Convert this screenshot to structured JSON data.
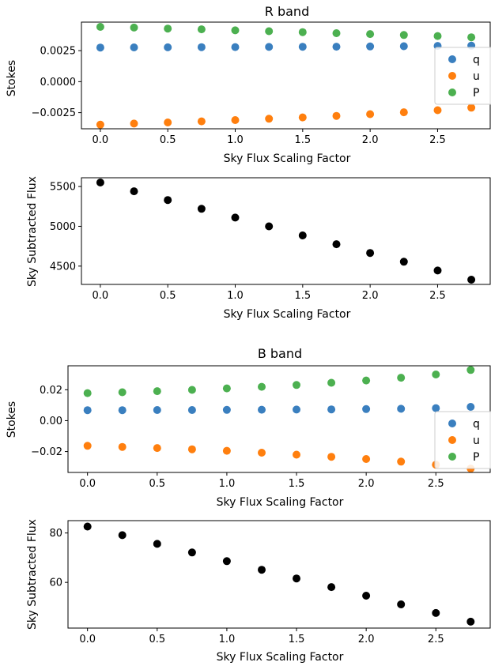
{
  "chart_data": [
    {
      "type": "scatter",
      "title": "R band",
      "xlabel": "Sky Flux Scaling Factor",
      "ylabel": "Stokes",
      "xlim": [
        -0.14,
        2.89
      ],
      "ylim": [
        -0.0038,
        0.0048
      ],
      "xticks": [
        0.0,
        0.5,
        1.0,
        1.5,
        2.0,
        2.5
      ],
      "xtick_labels": [
        "0.0",
        "0.5",
        "1.0",
        "1.5",
        "2.0",
        "2.5"
      ],
      "yticks": [
        -0.0025,
        0.0,
        0.0025
      ],
      "ytick_labels": [
        "−0.0025",
        "0.0000",
        "0.0025"
      ],
      "grid": false,
      "legend": "right",
      "x": [
        0.0,
        0.25,
        0.5,
        0.75,
        1.0,
        1.25,
        1.5,
        1.75,
        2.0,
        2.25,
        2.5,
        2.75
      ],
      "series": [
        {
          "name": "q",
          "color": "#3a7fbf",
          "values": [
            0.00275,
            0.00276,
            0.00277,
            0.00278,
            0.00279,
            0.0028,
            0.00281,
            0.00282,
            0.00284,
            0.00286,
            0.00288,
            0.0029
          ]
        },
        {
          "name": "u",
          "color": "#ff7f0e",
          "values": [
            -0.00347,
            -0.00338,
            -0.00329,
            -0.0032,
            -0.0031,
            -0.00299,
            -0.00288,
            -0.00276,
            -0.00262,
            -0.00247,
            -0.0023,
            -0.0021
          ]
        },
        {
          "name": "P",
          "color": "#4cb050",
          "values": [
            0.00442,
            0.00436,
            0.00428,
            0.00422,
            0.00414,
            0.00407,
            0.00399,
            0.00391,
            0.00384,
            0.00376,
            0.00368,
            0.00358
          ]
        }
      ]
    },
    {
      "type": "scatter",
      "title": "",
      "xlabel": "Sky Flux Scaling Factor",
      "ylabel": "Sky Subtracted Flux",
      "xlim": [
        -0.14,
        2.89
      ],
      "ylim": [
        4270,
        5610
      ],
      "xticks": [
        0.0,
        0.5,
        1.0,
        1.5,
        2.0,
        2.5
      ],
      "xtick_labels": [
        "0.0",
        "0.5",
        "1.0",
        "1.5",
        "2.0",
        "2.5"
      ],
      "yticks": [
        4500,
        5000,
        5500
      ],
      "ytick_labels": [
        "4500",
        "5000",
        "5500"
      ],
      "grid": false,
      "x": [
        0.0,
        0.25,
        0.5,
        0.75,
        1.0,
        1.25,
        1.5,
        1.75,
        2.0,
        2.25,
        2.5,
        2.75
      ],
      "series": [
        {
          "color": "#000000",
          "values": [
            5550,
            5440,
            5330,
            5220,
            5110,
            5000,
            4885,
            4775,
            4665,
            4555,
            4445,
            4330
          ]
        }
      ]
    },
    {
      "type": "scatter",
      "title": "B band",
      "xlabel": "Sky Flux Scaling Factor",
      "ylabel": "Stokes",
      "xlim": [
        -0.14,
        2.89
      ],
      "ylim": [
        -0.0335,
        0.0355
      ],
      "xticks": [
        0.0,
        0.5,
        1.0,
        1.5,
        2.0,
        2.5
      ],
      "xtick_labels": [
        "0.0",
        "0.5",
        "1.0",
        "1.5",
        "2.0",
        "2.5"
      ],
      "yticks": [
        -0.02,
        0.0,
        0.02
      ],
      "ytick_labels": [
        "−0.02",
        "0.00",
        "0.02"
      ],
      "grid": false,
      "legend": "right",
      "x": [
        0.0,
        0.25,
        0.5,
        0.75,
        1.0,
        1.25,
        1.5,
        1.75,
        2.0,
        2.25,
        2.5,
        2.75
      ],
      "series": [
        {
          "name": "q",
          "color": "#3a7fbf",
          "values": [
            0.0068,
            0.0068,
            0.0069,
            0.0069,
            0.007,
            0.0071,
            0.0072,
            0.0073,
            0.0075,
            0.0077,
            0.0081,
            0.0089
          ]
        },
        {
          "name": "u",
          "color": "#ff7f0e",
          "values": [
            -0.0163,
            -0.017,
            -0.0177,
            -0.0185,
            -0.0195,
            -0.0207,
            -0.022,
            -0.0234,
            -0.0248,
            -0.0265,
            -0.0285,
            -0.031
          ]
        },
        {
          "name": "P",
          "color": "#4cb050",
          "values": [
            0.0178,
            0.0184,
            0.0191,
            0.0199,
            0.0209,
            0.0219,
            0.0231,
            0.0245,
            0.026,
            0.0278,
            0.0299,
            0.0328
          ]
        }
      ]
    },
    {
      "type": "scatter",
      "title": "",
      "xlabel": "Sky Flux Scaling Factor",
      "ylabel": "Sky Subtracted Flux",
      "xlim": [
        -0.14,
        2.89
      ],
      "ylim": [
        41.5,
        85.0
      ],
      "xticks": [
        0.0,
        0.5,
        1.0,
        1.5,
        2.0,
        2.5
      ],
      "xtick_labels": [
        "0.0",
        "0.5",
        "1.0",
        "1.5",
        "2.0",
        "2.5"
      ],
      "yticks": [
        60,
        80
      ],
      "ytick_labels": [
        "60",
        "80"
      ],
      "grid": false,
      "x": [
        0.0,
        0.25,
        0.5,
        0.75,
        1.0,
        1.25,
        1.5,
        1.75,
        2.0,
        2.25,
        2.5,
        2.75
      ],
      "series": [
        {
          "color": "#000000",
          "values": [
            82.6,
            79.1,
            75.6,
            72.1,
            68.6,
            65.1,
            61.6,
            58.1,
            54.6,
            51.1,
            47.6,
            44.1
          ]
        }
      ]
    }
  ]
}
